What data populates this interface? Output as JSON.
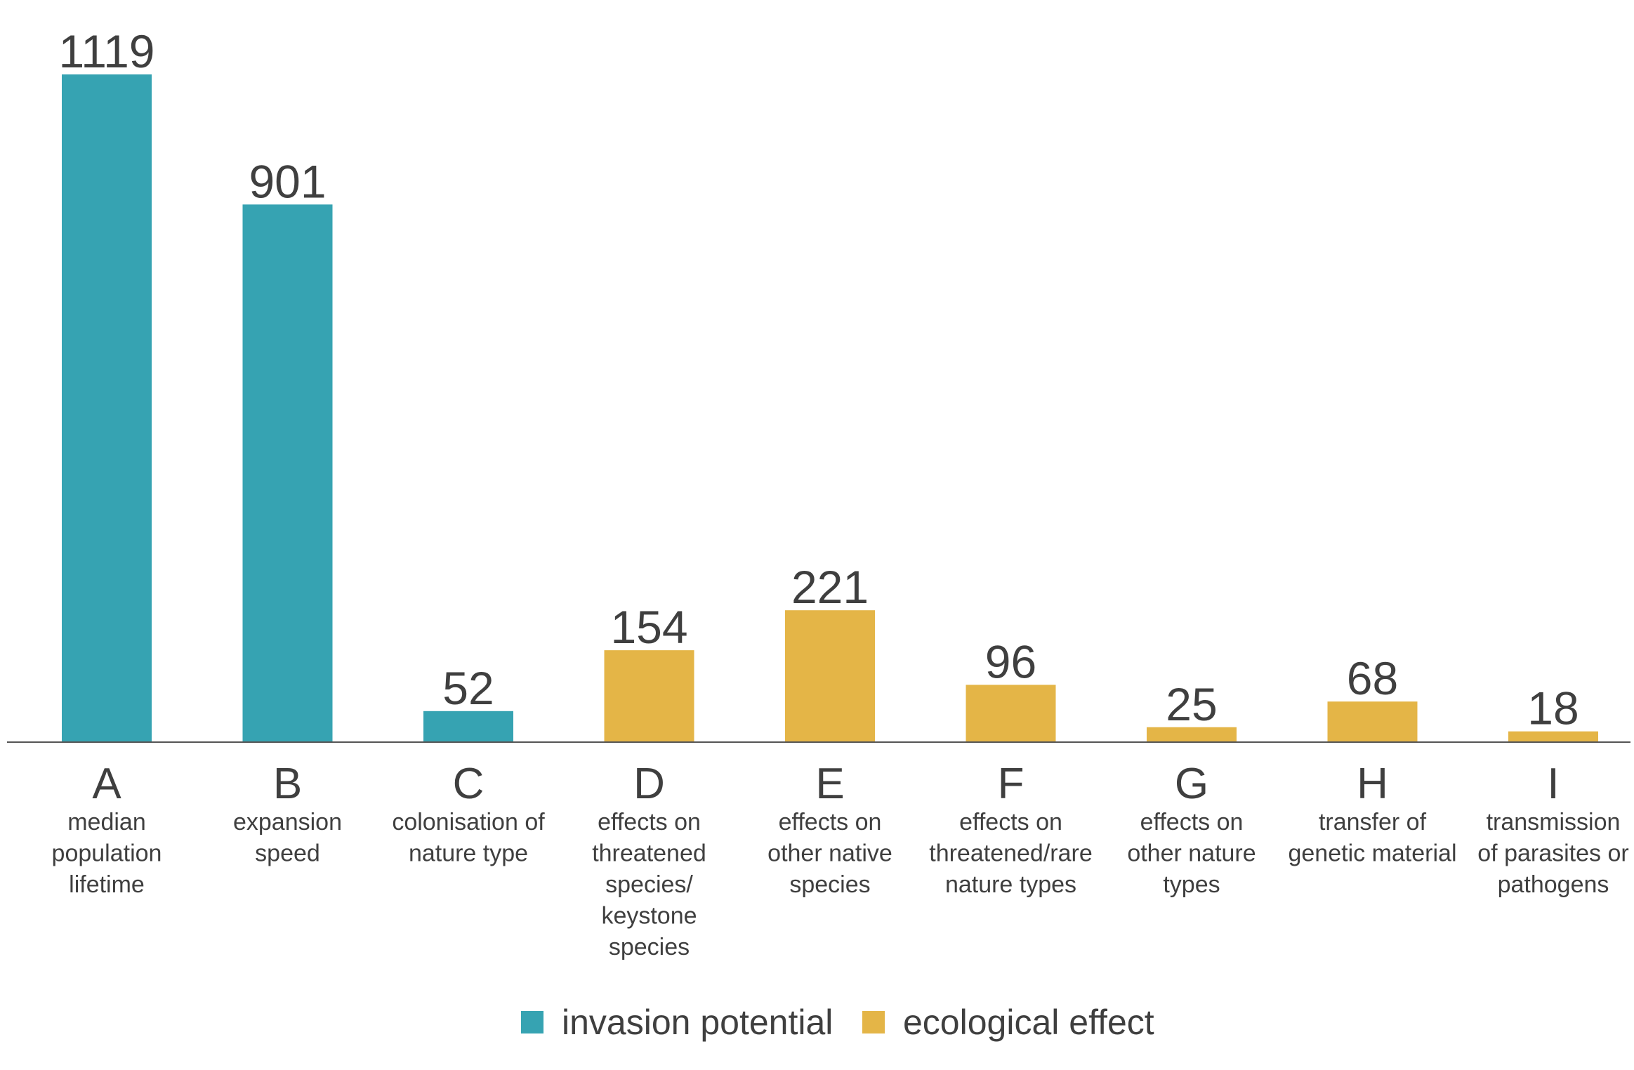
{
  "chart_data": {
    "type": "bar",
    "title": "",
    "xlabel": "",
    "ylabel": "",
    "ylim": [
      0,
      1119
    ],
    "grid": false,
    "legend_position": "bottom",
    "categories": [
      "A",
      "B",
      "C",
      "D",
      "E",
      "F",
      "G",
      "H",
      "I"
    ],
    "descriptions": [
      [
        "median",
        "population",
        "lifetime"
      ],
      [
        "expansion",
        "speed"
      ],
      [
        "colonisation of",
        "nature type"
      ],
      [
        "effects on",
        "threatened",
        "species/",
        "keystone",
        "species"
      ],
      [
        "effects on",
        "other native",
        "species"
      ],
      [
        "effects on",
        "threatened/rare",
        "nature types"
      ],
      [
        "effects on",
        "other nature",
        "types"
      ],
      [
        "transfer of",
        "genetic material"
      ],
      [
        "transmission",
        "of parasites or",
        "pathogens"
      ]
    ],
    "values": [
      1119,
      901,
      52,
      154,
      221,
      96,
      25,
      68,
      18
    ],
    "value_labels": [
      "1119",
      "901",
      "52",
      "154",
      "221",
      "96",
      "25",
      "68",
      "18"
    ],
    "bar_series": [
      "invasion",
      "invasion",
      "invasion",
      "ecological",
      "ecological",
      "ecological",
      "ecological",
      "ecological",
      "ecological"
    ],
    "series": [
      {
        "key": "invasion",
        "name": "invasion potential",
        "color": "#36a3b2"
      },
      {
        "key": "ecological",
        "name": "ecological effect",
        "color": "#e4b547"
      }
    ],
    "axis_color": "#555555"
  }
}
